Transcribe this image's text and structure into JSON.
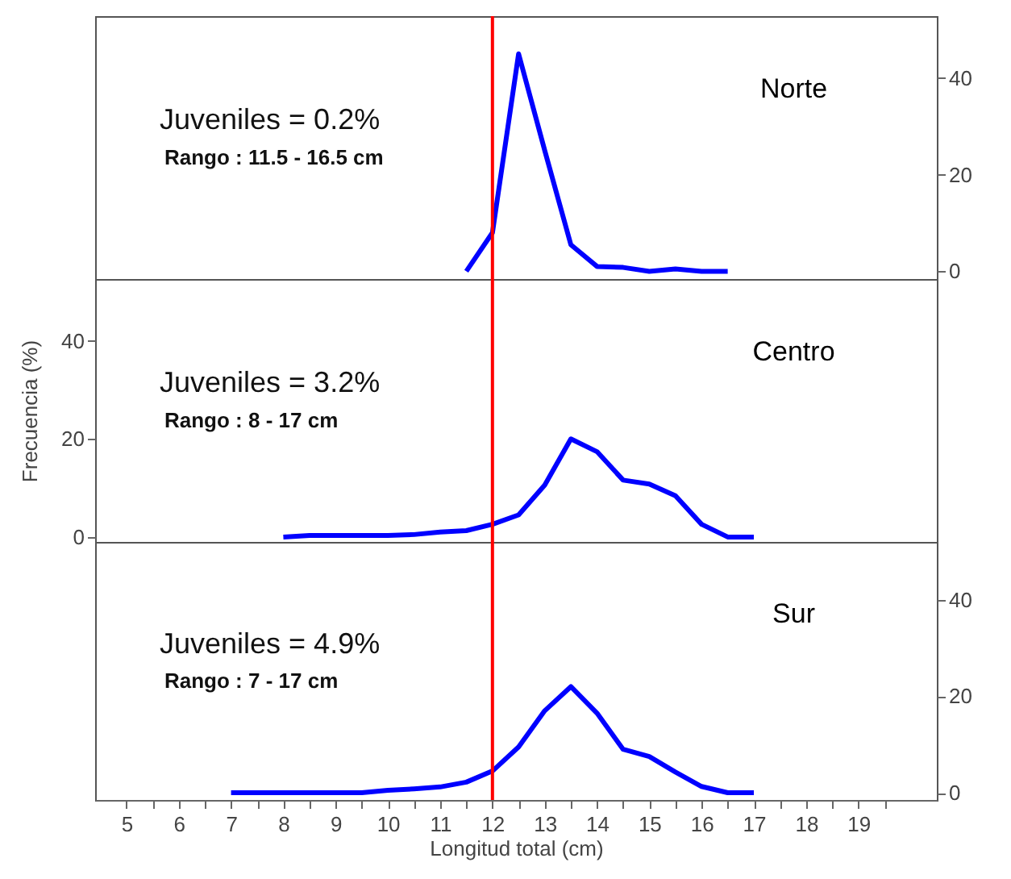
{
  "chart_data": [
    {
      "type": "line",
      "title": "Norte",
      "annotations": [
        "Juveniles = 0.2%",
        "Rango : 11.5 - 16.5 cm"
      ],
      "xlim": [
        4.4,
        20.5
      ],
      "ylim": [
        -1.6,
        52.8
      ],
      "yticks": [
        0,
        20,
        40
      ],
      "tick_labels": "y",
      "grid": false,
      "marker": "none",
      "line_style": "solid",
      "ref_lines": [
        {
          "axis": "x",
          "value": 12,
          "color": "#ff0000"
        }
      ],
      "series": [
        {
          "color": "#0000ff",
          "x": [
            11.5,
            12,
            12.5,
            13,
            13.5,
            14,
            14.5,
            15,
            15.5,
            16,
            16.5
          ],
          "values": [
            0,
            8,
            45,
            25,
            5.5,
            1,
            0.8,
            0,
            0.5,
            0,
            0
          ]
        }
      ]
    },
    {
      "type": "line",
      "title": "Centro",
      "ylabel": "Frecuencia (%)",
      "annotations": [
        "Juveniles = 3.2%",
        "Rango : 8 - 17 cm"
      ],
      "xlim": [
        4.4,
        20.5
      ],
      "ylim": [
        -1,
        52.6
      ],
      "yticks": [
        0,
        20,
        40
      ],
      "tick_labels": "y",
      "grid": false,
      "marker": "none",
      "line_style": "solid",
      "ref_lines": [
        {
          "axis": "x",
          "value": 12,
          "color": "#ff0000"
        }
      ],
      "series": [
        {
          "color": "#0000ff",
          "x": [
            8,
            8.5,
            9,
            9.5,
            10,
            10.5,
            11,
            11.5,
            12,
            12.5,
            13,
            13.5,
            14,
            14.5,
            15,
            15.5,
            16,
            16.5,
            17
          ],
          "values": [
            0,
            0.3,
            0.3,
            0.3,
            0.3,
            0.5,
            1,
            1.3,
            2.6,
            4.5,
            10.6,
            20,
            17.4,
            11.6,
            10.8,
            8.4,
            2.6,
            0,
            0
          ]
        }
      ]
    },
    {
      "type": "line",
      "title": "Sur",
      "xlabel": "Longitud total (cm)",
      "annotations": [
        "Juveniles = 4.9%",
        "Rango : 7 - 17 cm"
      ],
      "xlim": [
        4.4,
        20.5
      ],
      "ylim": [
        -1.5,
        52
      ],
      "yticks": [
        0,
        20,
        40
      ],
      "xticks": [
        5,
        {
          "value": 5.5,
          "label": null
        },
        6,
        {
          "value": 6.5,
          "label": null
        },
        7,
        {
          "value": 7.5,
          "label": null
        },
        8,
        {
          "value": 8.5,
          "label": null
        },
        9,
        {
          "value": 9.5,
          "label": null
        },
        10,
        {
          "value": 10.5,
          "label": null
        },
        11,
        {
          "value": 11.5,
          "label": null
        },
        12,
        {
          "value": 12.5,
          "label": null
        },
        13,
        {
          "value": 13.5,
          "label": null
        },
        14,
        {
          "value": 14.5,
          "label": null
        },
        15,
        {
          "value": 15.5,
          "label": null
        },
        16,
        {
          "value": 16.5,
          "label": null
        },
        17,
        {
          "value": 17.5,
          "label": null
        },
        18,
        {
          "value": 18.5,
          "label": null
        },
        19,
        {
          "value": 19.5,
          "label": null
        }
      ],
      "grid": false,
      "marker": "none",
      "line_style": "solid",
      "ref_lines": [
        {
          "axis": "x",
          "value": 12,
          "color": "#ff0000"
        }
      ],
      "series": [
        {
          "color": "#0000ff",
          "x": [
            7,
            7.5,
            8,
            8.5,
            9,
            9.5,
            10,
            10.5,
            11,
            11.5,
            12,
            12.5,
            13,
            13.5,
            14,
            14.5,
            15,
            15.5,
            16,
            16.5,
            17
          ],
          "values": [
            0,
            0,
            0,
            0,
            0,
            0,
            0.5,
            0.8,
            1.2,
            2.2,
            4.5,
            9.5,
            17,
            22,
            16.5,
            9,
            7.5,
            4.3,
            1.3,
            0,
            0
          ]
        }
      ]
    }
  ]
}
